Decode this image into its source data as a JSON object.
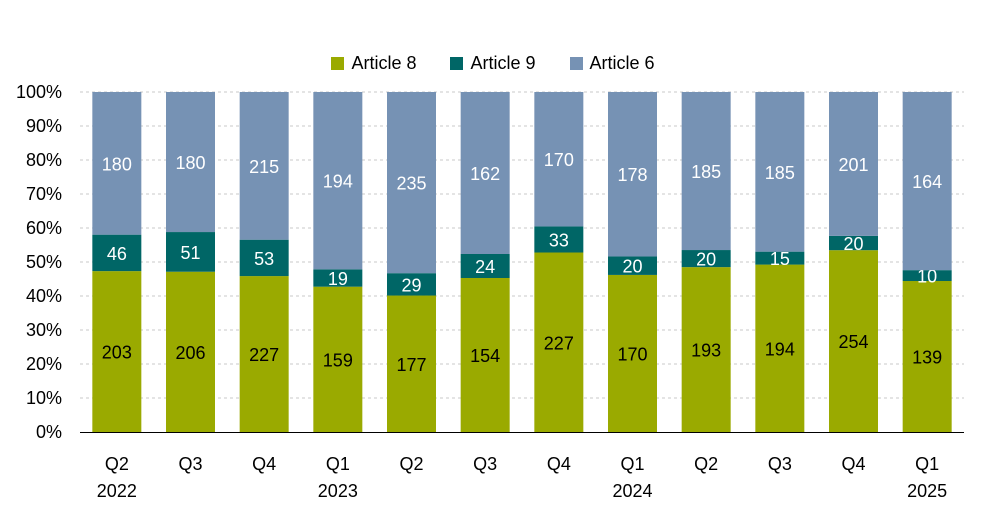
{
  "chart_data": {
    "type": "bar",
    "stacked": "percent",
    "title": "",
    "xlabel": "",
    "ylabel": "",
    "ylim": [
      0,
      100
    ],
    "yticks": [
      "0%",
      "10%",
      "20%",
      "30%",
      "40%",
      "50%",
      "60%",
      "70%",
      "80%",
      "90%",
      "100%"
    ],
    "grid": true,
    "legend_position": "top-center",
    "categories": [
      {
        "line1": "Q2",
        "line2": "2022"
      },
      {
        "line1": "Q3",
        "line2": ""
      },
      {
        "line1": "Q4",
        "line2": ""
      },
      {
        "line1": "Q1",
        "line2": "2023"
      },
      {
        "line1": "Q2",
        "line2": ""
      },
      {
        "line1": "Q3",
        "line2": ""
      },
      {
        "line1": "Q4",
        "line2": ""
      },
      {
        "line1": "Q1",
        "line2": "2024"
      },
      {
        "line1": "Q2",
        "line2": ""
      },
      {
        "line1": "Q3",
        "line2": ""
      },
      {
        "line1": "Q4",
        "line2": ""
      },
      {
        "line1": "Q1",
        "line2": "2025"
      }
    ],
    "series": [
      {
        "name": "Article 8",
        "color": "#9aaa00",
        "label_color": "#000000",
        "values": [
          203,
          206,
          227,
          159,
          177,
          154,
          227,
          170,
          193,
          194,
          254,
          139
        ]
      },
      {
        "name": "Article 9",
        "color": "#006666",
        "label_color": "#ffffff",
        "values": [
          46,
          51,
          53,
          19,
          29,
          24,
          33,
          20,
          20,
          15,
          20,
          10
        ]
      },
      {
        "name": "Article 6",
        "color": "#7692b4",
        "label_color": "#ffffff",
        "values": [
          180,
          180,
          215,
          194,
          235,
          162,
          170,
          178,
          185,
          185,
          201,
          164
        ]
      }
    ]
  }
}
